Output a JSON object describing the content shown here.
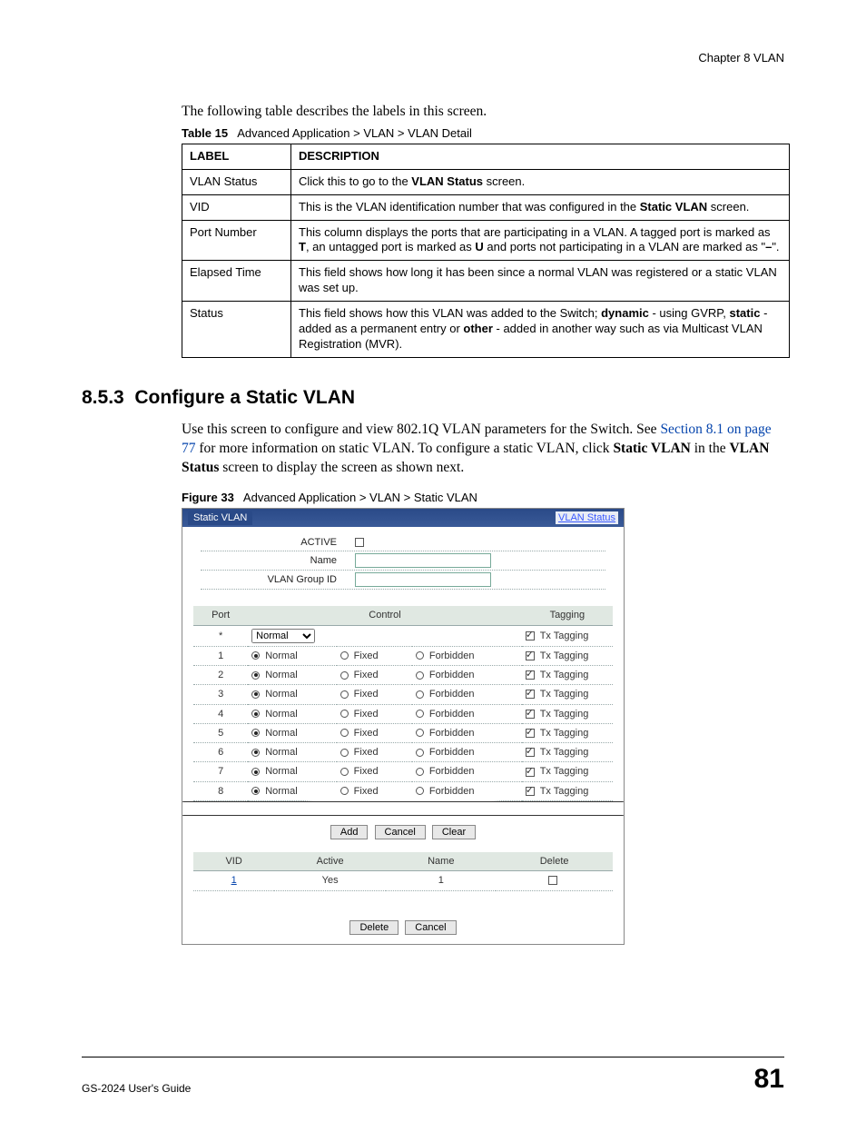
{
  "header": {
    "chapter": "Chapter 8 VLAN"
  },
  "intro": "The following table describes the labels in this screen.",
  "table15": {
    "caption_bold": "Table 15",
    "caption_rest": "Advanced Application > VLAN > VLAN Detail",
    "head_label": "LABEL",
    "head_desc": "DESCRIPTION",
    "rows": [
      {
        "label": "VLAN Status",
        "desc_pre": "Click this to go to the ",
        "desc_bold": "VLAN Status",
        "desc_post": " screen."
      },
      {
        "label": "VID",
        "desc_pre": "This is the VLAN identification number that was configured in the ",
        "desc_bold": "Static VLAN",
        "desc_post": " screen."
      },
      {
        "label": "Port Number",
        "desc_full": "This column displays the ports that are participating in a VLAN. A tagged port is marked as T, an untagged port is marked as U and ports not participating in a VLAN are marked as \"–\"."
      },
      {
        "label": "Elapsed Time",
        "desc_plain": "This field shows how long it has been since a normal VLAN was registered or a static VLAN was set up."
      },
      {
        "label": "Status",
        "desc_full2": "This field shows how this VLAN was added to the Switch; dynamic - using GVRP, static - added as a permanent entry or other - added in another way such as via Multicast VLAN Registration (MVR)."
      }
    ]
  },
  "section": {
    "num": "8.5.3",
    "title": "Configure a Static VLAN"
  },
  "para": {
    "t1": "Use this screen to configure and view 802.1Q VLAN parameters for the Switch. See ",
    "link": "Section 8.1 on page 77",
    "t2": " for more information on static VLAN. To configure a static VLAN, click ",
    "b1": "Static VLAN",
    "t3": " in the ",
    "b2": "VLAN Status",
    "t4": " screen to display the screen as shown next."
  },
  "figure33": {
    "caption_bold": "Figure 33",
    "caption_rest": "Advanced Application > VLAN > Static VLAN",
    "ui": {
      "title": "Static VLAN",
      "link": "VLAN Status",
      "fields": {
        "active": "ACTIVE",
        "name": "Name",
        "group": "VLAN Group ID"
      },
      "port_headers": {
        "port": "Port",
        "control": "Control",
        "tagging": "Tagging"
      },
      "star_row": {
        "port": "*",
        "select": "Normal",
        "tagging": "Tx Tagging"
      },
      "ports": [
        {
          "n": "1"
        },
        {
          "n": "2"
        },
        {
          "n": "3"
        },
        {
          "n": "4"
        },
        {
          "n": "5"
        },
        {
          "n": "6"
        },
        {
          "n": "7"
        },
        {
          "n": "8"
        }
      ],
      "ctrl_labels": {
        "normal": "Normal",
        "fixed": "Fixed",
        "forbidden": "Forbidden",
        "tagging": "Tx Tagging"
      },
      "buttons1": {
        "add": "Add",
        "cancel": "Cancel",
        "clear": "Clear"
      },
      "list_headers": {
        "vid": "VID",
        "active": "Active",
        "name": "Name",
        "delete": "Delete"
      },
      "list_row": {
        "vid": "1",
        "active": "Yes",
        "name": "1"
      },
      "buttons2": {
        "delete": "Delete",
        "cancel": "Cancel"
      }
    }
  },
  "footer": {
    "guide": "GS-2024 User's Guide",
    "page": "81"
  }
}
